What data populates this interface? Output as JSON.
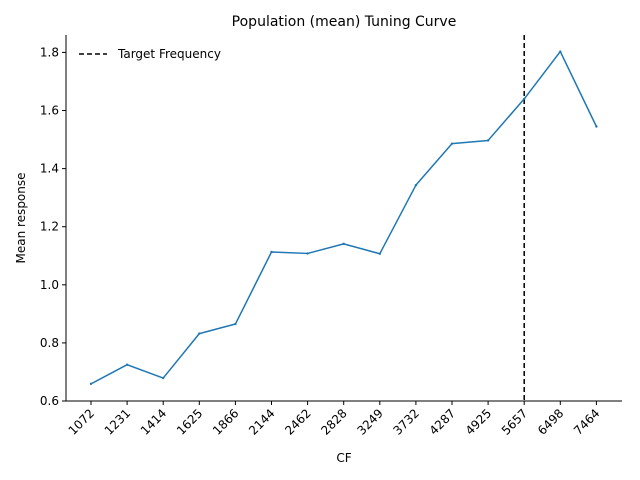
{
  "chart_data": {
    "type": "line",
    "title": "Population (mean) Tuning Curve",
    "xlabel": "CF",
    "ylabel": "Mean response",
    "categories": [
      "1072",
      "1231",
      "1414",
      "1625",
      "1866",
      "2144",
      "2462",
      "2828",
      "3249",
      "3732",
      "4287",
      "4925",
      "5657",
      "6498",
      "7464"
    ],
    "series": [
      {
        "values": [
          0.659,
          0.725,
          0.679,
          0.832,
          0.865,
          1.113,
          1.108,
          1.141,
          1.107,
          1.343,
          1.486,
          1.497,
          1.64,
          1.803,
          1.545
        ],
        "color": "#1f77b4"
      }
    ],
    "target": {
      "category": "5657",
      "label": "Target Frequency",
      "color": "#000000",
      "style": "dashed"
    },
    "ylim": [
      0.6,
      1.86
    ],
    "yticks": [
      "0.6",
      "0.8",
      "1.0",
      "1.2",
      "1.4",
      "1.6",
      "1.8"
    ],
    "grid": false,
    "legend": "top-left"
  }
}
